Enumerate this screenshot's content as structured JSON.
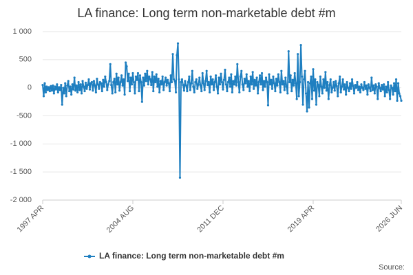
{
  "chart_data": {
    "type": "line",
    "title": "LA finance: Long term non-marketable debt #m",
    "source": "Source:",
    "x": [
      "1997-04",
      "1997-05",
      "1997-06",
      "1997-07",
      "1997-08",
      "1997-09",
      "1997-10",
      "1997-11",
      "1997-12",
      "1998-01",
      "1998-02",
      "1998-03",
      "1998-04",
      "1998-05",
      "1998-06",
      "1998-07",
      "1998-08",
      "1998-09",
      "1998-10",
      "1998-11",
      "1998-12",
      "1999-01",
      "1999-02",
      "1999-03",
      "1999-04",
      "1999-05",
      "1999-06",
      "1999-07",
      "1999-08",
      "1999-09",
      "1999-10",
      "1999-11",
      "1999-12",
      "2000-01",
      "2000-02",
      "2000-03",
      "2000-04",
      "2000-05",
      "2000-06",
      "2000-07",
      "2000-08",
      "2000-09",
      "2000-10",
      "2000-11",
      "2000-12",
      "2001-01",
      "2001-02",
      "2001-03",
      "2001-04",
      "2001-05",
      "2001-06",
      "2001-07",
      "2001-08",
      "2001-09",
      "2001-10",
      "2001-11",
      "2001-12",
      "2002-01",
      "2002-02",
      "2002-03",
      "2002-04",
      "2002-05",
      "2002-06",
      "2002-07",
      "2002-08",
      "2002-09",
      "2002-10",
      "2002-11",
      "2002-12",
      "2003-01",
      "2003-02",
      "2003-03",
      "2003-04",
      "2003-05",
      "2003-06",
      "2003-07",
      "2003-08",
      "2003-09",
      "2003-10",
      "2003-11",
      "2003-12",
      "2004-01",
      "2004-02",
      "2004-03",
      "2004-04",
      "2004-05",
      "2004-06",
      "2004-07",
      "2004-08",
      "2004-09",
      "2004-10",
      "2004-11",
      "2004-12",
      "2005-01",
      "2005-02",
      "2005-03",
      "2005-04",
      "2005-05",
      "2005-06",
      "2005-07",
      "2005-08",
      "2005-09",
      "2005-10",
      "2005-11",
      "2005-12",
      "2006-01",
      "2006-02",
      "2006-03",
      "2006-04",
      "2006-05",
      "2006-06",
      "2006-07",
      "2006-08",
      "2006-09",
      "2006-10",
      "2006-11",
      "2006-12",
      "2007-01",
      "2007-02",
      "2007-03",
      "2007-04",
      "2007-05",
      "2007-06",
      "2007-07",
      "2007-08",
      "2007-09",
      "2007-10",
      "2007-11",
      "2007-12",
      "2008-01",
      "2008-02",
      "2008-03",
      "2008-04",
      "2008-05",
      "2008-06",
      "2008-07",
      "2008-08",
      "2008-09",
      "2008-10",
      "2008-11",
      "2008-12",
      "2009-01",
      "2009-02",
      "2009-03",
      "2009-04",
      "2009-05",
      "2009-06",
      "2009-07",
      "2009-08",
      "2009-09",
      "2009-10",
      "2009-11",
      "2009-12",
      "2010-01",
      "2010-02",
      "2010-03",
      "2010-04",
      "2010-05",
      "2010-06",
      "2010-07",
      "2010-08",
      "2010-09",
      "2010-10",
      "2010-11",
      "2010-12",
      "2011-01",
      "2011-02",
      "2011-03",
      "2011-04",
      "2011-05",
      "2011-06",
      "2011-07",
      "2011-08",
      "2011-09",
      "2011-10",
      "2011-11",
      "2011-12",
      "2012-01",
      "2012-02",
      "2012-03",
      "2012-04",
      "2012-05",
      "2012-06",
      "2012-07",
      "2012-08",
      "2012-09",
      "2012-10",
      "2012-11",
      "2012-12",
      "2013-01",
      "2013-02",
      "2013-03",
      "2013-04",
      "2013-05",
      "2013-06",
      "2013-07",
      "2013-08",
      "2013-09",
      "2013-10",
      "2013-11",
      "2013-12",
      "2014-01",
      "2014-02",
      "2014-03",
      "2014-04",
      "2014-05",
      "2014-06",
      "2014-07",
      "2014-08",
      "2014-09",
      "2014-10",
      "2014-11",
      "2014-12",
      "2015-01",
      "2015-02",
      "2015-03",
      "2015-04",
      "2015-05",
      "2015-06",
      "2015-07",
      "2015-08",
      "2015-09",
      "2015-10",
      "2015-11",
      "2015-12",
      "2016-01",
      "2016-02",
      "2016-03",
      "2016-04",
      "2016-05",
      "2016-06",
      "2016-07",
      "2016-08",
      "2016-09",
      "2016-10",
      "2016-11",
      "2016-12",
      "2017-01",
      "2017-02",
      "2017-03",
      "2017-04",
      "2017-05",
      "2017-06",
      "2017-07",
      "2017-08",
      "2017-09",
      "2017-10",
      "2017-11",
      "2017-12",
      "2018-01",
      "2018-02",
      "2018-03",
      "2018-04",
      "2018-05",
      "2018-06",
      "2018-07",
      "2018-08",
      "2018-09",
      "2018-10",
      "2018-11",
      "2018-12",
      "2019-01",
      "2019-02",
      "2019-03",
      "2019-04",
      "2019-05",
      "2019-06",
      "2019-07",
      "2019-08",
      "2019-09",
      "2019-10",
      "2019-11",
      "2019-12",
      "2020-01",
      "2020-02",
      "2020-03",
      "2020-04",
      "2020-05",
      "2020-06",
      "2020-07",
      "2020-08",
      "2020-09",
      "2020-10",
      "2020-11",
      "2020-12",
      "2021-01",
      "2021-02",
      "2021-03",
      "2021-04",
      "2021-05",
      "2021-06",
      "2021-07",
      "2021-08",
      "2021-09",
      "2021-10",
      "2021-11",
      "2021-12",
      "2022-01",
      "2022-02",
      "2022-03",
      "2022-04",
      "2022-05",
      "2022-06",
      "2022-07",
      "2022-08",
      "2022-09",
      "2022-10",
      "2022-11",
      "2022-12",
      "2023-01",
      "2023-02",
      "2023-03",
      "2023-04",
      "2023-05",
      "2023-06",
      "2023-07",
      "2023-08",
      "2023-09",
      "2023-10",
      "2023-11",
      "2023-12",
      "2024-01",
      "2024-02",
      "2024-03",
      "2024-04",
      "2024-05",
      "2024-06",
      "2024-07",
      "2024-08",
      "2024-09",
      "2024-10",
      "2024-11",
      "2024-12",
      "2025-01",
      "2025-02",
      "2025-03",
      "2025-04",
      "2025-05",
      "2025-06",
      "2025-07",
      "2025-08",
      "2025-09",
      "2025-10",
      "2025-11",
      "2025-12",
      "2026-01",
      "2026-02",
      "2026-03",
      "2026-04",
      "2026-05",
      "2026-06"
    ],
    "series": [
      {
        "name": "LA finance: Long term non-marketable debt #m",
        "color": "#1f7fc0",
        "values": [
          50,
          -150,
          80,
          -80,
          20,
          -40,
          10,
          -60,
          30,
          -50,
          40,
          -100,
          20,
          -30,
          60,
          -80,
          10,
          -40,
          50,
          -300,
          0,
          -100,
          80,
          -150,
          40,
          120,
          -60,
          20,
          -120,
          60,
          -30,
          180,
          -50,
          40,
          -80,
          100,
          -40,
          60,
          -100,
          120,
          20,
          -60,
          90,
          -20,
          50,
          150,
          -30,
          80,
          100,
          -50,
          120,
          40,
          -80,
          160,
          60,
          -20,
          100,
          80,
          -60,
          140,
          20,
          200,
          100,
          -40,
          60,
          120,
          420,
          50,
          -100,
          100,
          160,
          -80,
          250,
          60,
          180,
          -50,
          100,
          220,
          40,
          150,
          -120,
          450,
          380,
          120,
          250,
          -60,
          180,
          60,
          260,
          100,
          -100,
          200,
          140,
          260,
          -60,
          220,
          100,
          -250,
          180,
          40,
          250,
          120,
          300,
          60,
          200,
          150,
          50,
          280,
          -60,
          200,
          100,
          240,
          20,
          160,
          -80,
          120,
          60,
          200,
          -40,
          100,
          180,
          40,
          140,
          80,
          -60,
          220,
          100,
          600,
          150,
          120,
          -80,
          580,
          790,
          150,
          -1600,
          100,
          150,
          50,
          -50,
          120,
          40,
          -60,
          100,
          200,
          -40,
          80,
          300,
          20,
          -80,
          100,
          150,
          -20,
          60,
          180,
          40,
          -60,
          260,
          80,
          -40,
          120,
          300,
          50,
          100,
          -80,
          200,
          60,
          150,
          -40,
          100,
          220,
          20,
          -100,
          180,
          60,
          250,
          100,
          -30,
          140,
          320,
          60,
          -60,
          100,
          180,
          20,
          240,
          -80,
          120,
          60,
          200,
          40,
          420,
          100,
          -80,
          200,
          300,
          60,
          -40,
          160,
          80,
          240,
          20,
          120,
          -60,
          200,
          60,
          280,
          -20,
          140,
          40,
          180,
          -100,
          100,
          220,
          60,
          260,
          -40,
          120,
          20,
          180,
          100,
          -310,
          240,
          60,
          140,
          -20,
          200,
          80,
          -60,
          160,
          40,
          240,
          100,
          -80,
          300,
          60,
          120,
          -40,
          180,
          20,
          -100,
          650,
          100,
          220,
          -60,
          140,
          40,
          260,
          80,
          -200,
          600,
          -150,
          100,
          760,
          200,
          -300,
          150,
          300,
          -100,
          -420,
          100,
          -350,
          80,
          200,
          -200,
          330,
          -50,
          150,
          -300,
          100,
          50,
          -150,
          200,
          20,
          -100,
          150,
          0,
          280,
          -50,
          100,
          -200,
          50,
          150,
          -80,
          0,
          100,
          -50,
          120,
          30,
          -150,
          80,
          200,
          -80,
          20,
          150,
          -30,
          60,
          -120,
          100,
          0,
          -60,
          80,
          -20,
          150,
          30,
          -100,
          50,
          0,
          100,
          -40,
          20,
          -80,
          60,
          0,
          -40,
          100,
          -20,
          40,
          -120,
          60,
          0,
          -60,
          180,
          -40,
          40,
          -100,
          60,
          20,
          -200,
          80,
          0,
          -60,
          50,
          -30,
          60,
          -150,
          20,
          -80,
          100,
          -40,
          -200,
          40,
          0,
          -120,
          80,
          -60,
          150,
          -230,
          80,
          -100,
          -150,
          -230
        ]
      }
    ],
    "xticks": [
      {
        "value": "1997-04",
        "label": "1997 APR"
      },
      {
        "value": "2004-08",
        "label": "2004 AUG"
      },
      {
        "value": "2011-12",
        "label": "2011 DEC"
      },
      {
        "value": "2019-04",
        "label": "2019 APR"
      },
      {
        "value": "2026-06",
        "label": "2026 JUN"
      }
    ],
    "ylim": [
      -2000,
      1000
    ],
    "yticks": [
      {
        "value": 1000,
        "label": "1 000"
      },
      500,
      0,
      -500,
      {
        "value": -1000,
        "label": "-1 000"
      },
      {
        "value": -1500,
        "label": "-1 500"
      },
      {
        "value": -2000,
        "label": "-2 000"
      }
    ],
    "grid": true
  }
}
